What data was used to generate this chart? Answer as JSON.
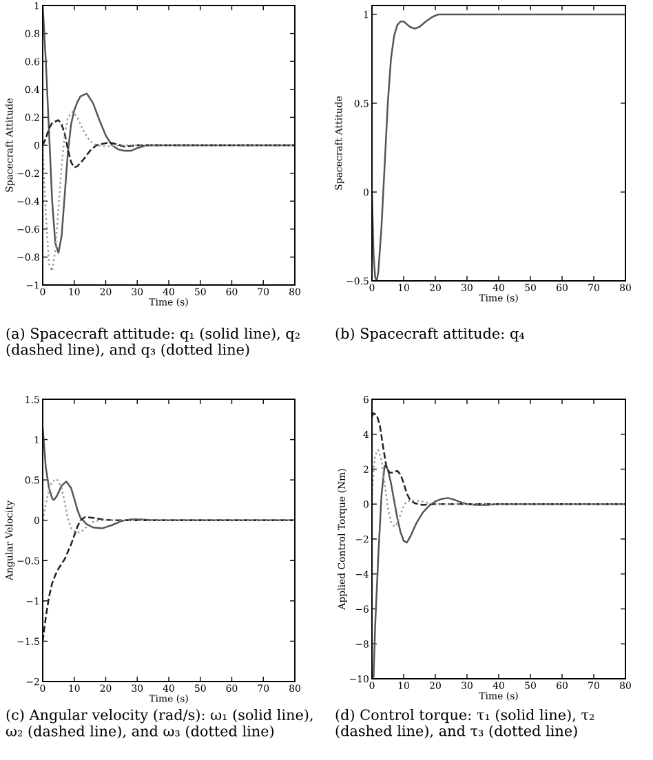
{
  "chart_data": [
    {
      "type": "line",
      "xlabel": "Time (s)",
      "ylabel": "Spacecraft Attitude",
      "annotations": [
        "(a) Spacecraft attitude: q₁ (solid line), q₂ (dashed line), and q₃ (dotted line)"
      ],
      "xlim": [
        0,
        80
      ],
      "xticks": [
        0,
        10,
        20,
        30,
        40,
        50,
        60,
        70,
        80
      ],
      "ylim": [
        -1,
        1
      ],
      "yticks": [
        -1,
        -0.8,
        -0.6,
        -0.4,
        -0.2,
        0,
        0.2,
        0.4,
        0.6,
        0.8,
        1
      ],
      "series": [
        {
          "color": "#555555",
          "line_style": "solid",
          "x": [
            0,
            1,
            2,
            3,
            4,
            5,
            6,
            7,
            8,
            9,
            10,
            11,
            12,
            14,
            16,
            18,
            20,
            22,
            24,
            26,
            28,
            30,
            33,
            40,
            80
          ],
          "values": [
            1,
            0.6,
            0.1,
            -0.4,
            -0.7,
            -0.77,
            -0.65,
            -0.35,
            -0.05,
            0.15,
            0.25,
            0.31,
            0.35,
            0.37,
            0.3,
            0.18,
            0.07,
            0.0,
            -0.03,
            -0.04,
            -0.04,
            -0.02,
            0,
            0,
            0
          ]
        },
        {
          "color": "#222222",
          "line_style": "dashed",
          "x": [
            0,
            1,
            2,
            3,
            5,
            6,
            7,
            8,
            9,
            10,
            11,
            13,
            15,
            17,
            19,
            21,
            23,
            26,
            30,
            80
          ],
          "values": [
            0,
            0.05,
            0.12,
            0.16,
            0.18,
            0.15,
            0.08,
            -0.03,
            -0.12,
            -0.16,
            -0.15,
            -0.1,
            -0.04,
            0.0,
            0.01,
            0.02,
            0.01,
            -0.01,
            0,
            0
          ]
        },
        {
          "color": "#999999",
          "line_style": "dotted",
          "x": [
            0,
            1,
            2,
            3,
            4,
            5,
            6,
            7,
            8,
            9.5,
            11,
            13,
            15,
            17,
            20,
            25,
            80
          ],
          "values": [
            0,
            -0.5,
            -0.85,
            -0.9,
            -0.75,
            -0.45,
            -0.15,
            0.08,
            0.2,
            0.24,
            0.2,
            0.1,
            0.03,
            0,
            -0.01,
            0,
            0
          ]
        }
      ]
    },
    {
      "type": "line",
      "xlabel": "Time (s)",
      "ylabel": "Spacecraft Attitude",
      "annotations": [
        "(b) Spacecraft attitude: q₄"
      ],
      "xlim": [
        0,
        80
      ],
      "xticks": [
        0,
        10,
        20,
        30,
        40,
        50,
        60,
        70,
        80
      ],
      "ylim": [
        -0.5,
        1.05
      ],
      "yticks": [
        -0.5,
        0,
        0.5,
        1
      ],
      "series": [
        {
          "color": "#555555",
          "line_style": "solid",
          "x": [
            0,
            0.5,
            1,
            1.5,
            2,
            3,
            4,
            5,
            6,
            7,
            8,
            9,
            10,
            11,
            12,
            13.5,
            15,
            17,
            19,
            21,
            80
          ],
          "values": [
            0,
            -0.35,
            -0.48,
            -0.5,
            -0.45,
            -0.2,
            0.15,
            0.5,
            0.75,
            0.88,
            0.94,
            0.96,
            0.96,
            0.945,
            0.93,
            0.92,
            0.93,
            0.96,
            0.985,
            1,
            1
          ]
        }
      ]
    },
    {
      "type": "line",
      "xlabel": "Time (s)",
      "ylabel": "Angular Velocity",
      "annotations": [
        "(c) Angular velocity (rad/s): ω₁ (solid line), ω₂ (dashed line), and ω₃ (dotted line)"
      ],
      "xlim": [
        0,
        80
      ],
      "xticks": [
        0,
        10,
        20,
        30,
        40,
        50,
        60,
        70,
        80
      ],
      "ylim": [
        -2,
        1.5
      ],
      "yticks": [
        -2,
        -1.5,
        -1,
        -0.5,
        0,
        0.5,
        1,
        1.5
      ],
      "series": [
        {
          "color": "#555555",
          "line_style": "solid",
          "x": [
            0,
            0.5,
            1,
            2,
            3,
            3.5,
            4.5,
            6,
            7.5,
            9,
            10,
            11,
            12,
            14,
            16,
            19,
            22,
            25,
            28,
            31,
            35,
            80
          ],
          "values": [
            1.15,
            0.9,
            0.65,
            0.4,
            0.27,
            0.25,
            0.3,
            0.43,
            0.48,
            0.4,
            0.27,
            0.13,
            0.03,
            -0.05,
            -0.09,
            -0.1,
            -0.06,
            -0.01,
            0.01,
            0.01,
            0,
            0
          ]
        },
        {
          "color": "#222222",
          "line_style": "dashed",
          "x": [
            0,
            1,
            2,
            3,
            4,
            5,
            7,
            9,
            11,
            12,
            13.5,
            16,
            19,
            22,
            80
          ],
          "values": [
            -1.5,
            -1.2,
            -0.95,
            -0.78,
            -0.68,
            -0.6,
            -0.48,
            -0.3,
            -0.08,
            0.0,
            0.04,
            0.03,
            0.01,
            0,
            0
          ]
        },
        {
          "color": "#999999",
          "line_style": "dotted",
          "x": [
            0,
            1,
            2,
            3,
            4.5,
            6,
            7,
            8,
            9,
            10.5,
            12,
            14,
            16,
            18,
            80
          ],
          "values": [
            0,
            0.2,
            0.38,
            0.48,
            0.51,
            0.4,
            0.22,
            0.02,
            -0.1,
            -0.15,
            -0.15,
            -0.08,
            -0.02,
            0,
            0
          ]
        }
      ]
    },
    {
      "type": "line",
      "xlabel": "Time (s)",
      "ylabel": "Applied Control Torque (Nm)",
      "annotations": [
        "(d) Control torque: τ₁ (solid line), τ₂ (dashed line), and τ₃ (dotted line)"
      ],
      "xlim": [
        0,
        80
      ],
      "xticks": [
        0,
        10,
        20,
        30,
        40,
        50,
        60,
        70,
        80
      ],
      "ylim": [
        -10,
        6
      ],
      "yticks": [
        -10,
        -8,
        -6,
        -4,
        -2,
        0,
        2,
        4,
        6
      ],
      "series": [
        {
          "color": "#555555",
          "line_style": "solid",
          "x": [
            0,
            0.5,
            1,
            2,
            3,
            4,
            5,
            6,
            7,
            8,
            9,
            10,
            11,
            12,
            14,
            16,
            18,
            20,
            22,
            24,
            26,
            28,
            30,
            33,
            36,
            40,
            80
          ],
          "values": [
            -9.8,
            -9.9,
            -7,
            -3,
            0.5,
            2.2,
            2.0,
            1.2,
            0.2,
            -0.8,
            -1.6,
            -2.1,
            -2.2,
            -1.9,
            -1.1,
            -0.5,
            -0.1,
            0.15,
            0.3,
            0.35,
            0.25,
            0.1,
            0,
            -0.05,
            -0.05,
            0,
            0
          ]
        },
        {
          "color": "#222222",
          "line_style": "dashed",
          "x": [
            0,
            0.5,
            1.5,
            2.5,
            3.5,
            4.5,
            5.5,
            6.5,
            8,
            9,
            10,
            11,
            12,
            13.5,
            16,
            20,
            80
          ],
          "values": [
            5,
            5.2,
            5.1,
            4.5,
            3.3,
            2.2,
            1.8,
            1.8,
            1.9,
            1.7,
            1.2,
            0.6,
            0.25,
            0.05,
            -0.05,
            0,
            0
          ]
        },
        {
          "color": "#999999",
          "line_style": "dotted",
          "x": [
            0,
            0.5,
            1,
            2,
            3,
            4,
            5,
            6,
            7,
            8,
            9,
            10,
            11,
            12,
            14,
            16,
            18,
            20,
            80
          ],
          "values": [
            0,
            2,
            2.8,
            3.1,
            2.5,
            1.2,
            -0.2,
            -1.0,
            -1.3,
            -1.1,
            -0.6,
            -0.1,
            0.15,
            0.2,
            0.2,
            0.15,
            0.05,
            0,
            0
          ]
        }
      ]
    }
  ]
}
